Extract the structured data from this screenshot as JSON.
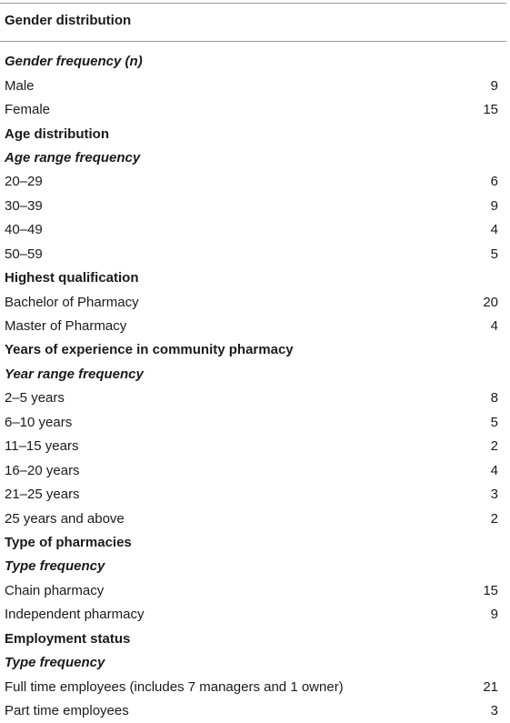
{
  "table": {
    "header": "Gender distribution",
    "rows": [
      {
        "type": "subsection",
        "label": "Gender frequency (n)",
        "value": ""
      },
      {
        "type": "data",
        "label": "Male",
        "value": "9"
      },
      {
        "type": "data",
        "label": "Female",
        "value": "15"
      },
      {
        "type": "section",
        "label": "Age distribution",
        "value": ""
      },
      {
        "type": "subsection",
        "label": "Age range frequency",
        "value": ""
      },
      {
        "type": "data",
        "label": "20–29",
        "value": "6"
      },
      {
        "type": "data",
        "label": "30–39",
        "value": "9"
      },
      {
        "type": "data",
        "label": "40–49",
        "value": "4"
      },
      {
        "type": "data",
        "label": "50–59",
        "value": "5"
      },
      {
        "type": "section",
        "label": "Highest qualification",
        "value": ""
      },
      {
        "type": "data",
        "label": "Bachelor of Pharmacy",
        "value": "20"
      },
      {
        "type": "data",
        "label": "Master of Pharmacy",
        "value": "4"
      },
      {
        "type": "section",
        "label": "Years of experience in community pharmacy",
        "value": ""
      },
      {
        "type": "subsection",
        "label": "Year range frequency",
        "value": ""
      },
      {
        "type": "data",
        "label": "2–5 years",
        "value": "8"
      },
      {
        "type": "data",
        "label": "6–10 years",
        "value": "5"
      },
      {
        "type": "data",
        "label": "11–15 years",
        "value": "2"
      },
      {
        "type": "data",
        "label": "16–20 years",
        "value": "4"
      },
      {
        "type": "data",
        "label": "21–25 years",
        "value": "3"
      },
      {
        "type": "data",
        "label": "25 years and above",
        "value": "2"
      },
      {
        "type": "section",
        "label": "Type of pharmacies",
        "value": ""
      },
      {
        "type": "subsection",
        "label": "Type frequency",
        "value": ""
      },
      {
        "type": "data",
        "label": "Chain pharmacy",
        "value": "15"
      },
      {
        "type": "data",
        "label": "Independent pharmacy",
        "value": "9"
      },
      {
        "type": "section",
        "label": "Employment status",
        "value": ""
      },
      {
        "type": "subsection",
        "label": "Type frequency",
        "value": ""
      },
      {
        "type": "data",
        "label": "Full time employees (includes 7 managers and 1 owner)",
        "value": "21"
      },
      {
        "type": "data",
        "label": "Part time employees",
        "value": "3"
      }
    ]
  }
}
